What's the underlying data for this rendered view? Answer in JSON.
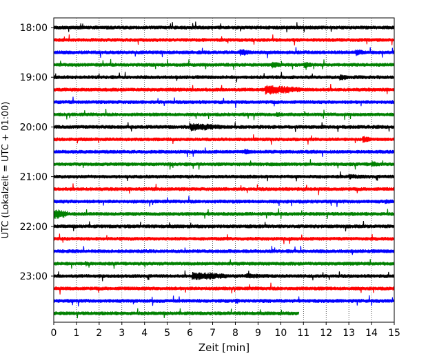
{
  "chart_data": {
    "type": "line",
    "title": "",
    "xlabel": "Zeit  [min]",
    "ylabel": "UTC (Lokalzeit = UTC + 01:00)",
    "xlim": [
      0,
      15
    ],
    "x_ticks": [
      "0",
      "1",
      "2",
      "3",
      "4",
      "5",
      "6",
      "7",
      "8",
      "9",
      "10",
      "11",
      "12",
      "13",
      "14",
      "15"
    ],
    "y_ticks": [
      "18:00",
      "19:00",
      "20:00",
      "21:00",
      "22:00",
      "23:00"
    ],
    "grid": "vertical dotted at each minute",
    "trace_colors": [
      "#000000",
      "#ff0000",
      "#0000ff",
      "#008000"
    ],
    "trace_interval_min": 15,
    "series": [
      {
        "start": "18:00",
        "end_min": 15,
        "color": "#000000",
        "events": []
      },
      {
        "start": "18:15",
        "end_min": 15,
        "color": "#ff0000",
        "events": []
      },
      {
        "start": "18:30",
        "end_min": 15,
        "color": "#0000ff",
        "events": [
          {
            "t": 8.2,
            "dur": 0.6,
            "amp": 5
          },
          {
            "t": 13.3,
            "dur": 0.4,
            "amp": 5
          }
        ]
      },
      {
        "start": "18:45",
        "end_min": 15,
        "color": "#008000",
        "events": [
          {
            "t": 9.6,
            "dur": 0.4,
            "amp": 5
          },
          {
            "t": 11.0,
            "dur": 0.4,
            "amp": 5
          }
        ]
      },
      {
        "start": "19:00",
        "end_min": 15,
        "color": "#000000",
        "events": [
          {
            "t": 12.6,
            "dur": 0.4,
            "amp": 5
          }
        ]
      },
      {
        "start": "19:15",
        "end_min": 15,
        "color": "#ff0000",
        "events": [
          {
            "t": 9.3,
            "dur": 1.6,
            "amp": 7
          }
        ]
      },
      {
        "start": "19:30",
        "end_min": 15,
        "color": "#0000ff",
        "events": []
      },
      {
        "start": "19:45",
        "end_min": 15,
        "color": "#008000",
        "events": [
          {
            "t": 9.8,
            "dur": 0.4,
            "amp": 4
          }
        ]
      },
      {
        "start": "20:00",
        "end_min": 15,
        "color": "#000000",
        "events": [
          {
            "t": 6.0,
            "dur": 1.4,
            "amp": 6
          }
        ]
      },
      {
        "start": "20:15",
        "end_min": 15,
        "color": "#ff0000",
        "events": [
          {
            "t": 13.6,
            "dur": 0.4,
            "amp": 5
          }
        ]
      },
      {
        "start": "20:30",
        "end_min": 15,
        "color": "#0000ff",
        "events": [
          {
            "t": 8.4,
            "dur": 0.5,
            "amp": 4
          }
        ]
      },
      {
        "start": "20:45",
        "end_min": 15,
        "color": "#008000",
        "events": [
          {
            "t": 14.0,
            "dur": 0.3,
            "amp": 5
          }
        ]
      },
      {
        "start": "21:00",
        "end_min": 15,
        "color": "#000000",
        "events": [
          {
            "t": 13.0,
            "dur": 0.8,
            "amp": 4
          }
        ]
      },
      {
        "start": "21:15",
        "end_min": 15,
        "color": "#ff0000",
        "events": []
      },
      {
        "start": "21:30",
        "end_min": 15,
        "color": "#0000ff",
        "events": [
          {
            "t": 14.6,
            "dur": 0.4,
            "amp": 4
          }
        ]
      },
      {
        "start": "21:45",
        "end_min": 15,
        "color": "#008000",
        "events": [
          {
            "t": 0.0,
            "dur": 0.6,
            "amp": 8
          }
        ]
      },
      {
        "start": "22:00",
        "end_min": 15,
        "color": "#000000",
        "events": []
      },
      {
        "start": "22:15",
        "end_min": 15,
        "color": "#ff0000",
        "events": []
      },
      {
        "start": "22:30",
        "end_min": 15,
        "color": "#0000ff",
        "events": []
      },
      {
        "start": "22:45",
        "end_min": 15,
        "color": "#008000",
        "events": [
          {
            "t": 1.4,
            "dur": 0.2,
            "amp": 4
          }
        ]
      },
      {
        "start": "23:00",
        "end_min": 15,
        "color": "#000000",
        "events": [
          {
            "t": 6.1,
            "dur": 1.6,
            "amp": 6
          },
          {
            "t": 8.5,
            "dur": 1.0,
            "amp": 4
          }
        ]
      },
      {
        "start": "23:15",
        "end_min": 15,
        "color": "#ff0000",
        "events": []
      },
      {
        "start": "23:30",
        "end_min": 15,
        "color": "#0000ff",
        "events": [
          {
            "t": 8.0,
            "dur": 0.2,
            "amp": 5
          }
        ]
      },
      {
        "start": "23:45",
        "end_min": 10.8,
        "color": "#008000",
        "events": []
      }
    ]
  }
}
